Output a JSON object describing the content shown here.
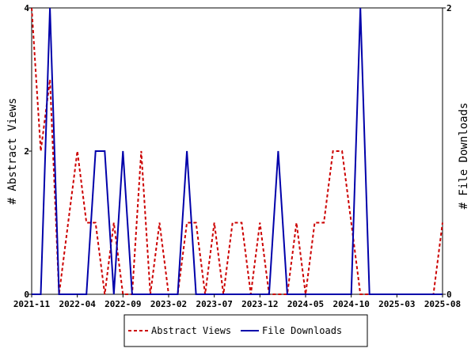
{
  "chart_data": {
    "type": "line",
    "x": [
      "2021-11",
      "2021-12",
      "2022-01",
      "2022-02",
      "2022-03",
      "2022-04",
      "2022-05",
      "2022-06",
      "2022-07",
      "2022-08",
      "2022-09",
      "2022-10",
      "2022-11",
      "2022-12",
      "2023-01",
      "2023-02",
      "2023-03",
      "2023-04",
      "2023-05",
      "2023-06",
      "2023-07",
      "2023-08",
      "2023-09",
      "2023-10",
      "2023-11",
      "2023-12",
      "2024-01",
      "2024-02",
      "2024-03",
      "2024-04",
      "2024-05",
      "2024-06",
      "2024-07",
      "2024-08",
      "2024-09",
      "2024-10",
      "2024-11",
      "2024-12",
      "2025-01",
      "2025-02",
      "2025-03",
      "2025-04",
      "2025-05",
      "2025-06",
      "2025-07",
      "2025-08"
    ],
    "x_ticks": [
      "2021-11",
      "2022-04",
      "2022-09",
      "2023-02",
      "2023-07",
      "2023-12",
      "2024-05",
      "2024-10",
      "2025-03",
      "2025-08"
    ],
    "series": [
      {
        "name": "Abstract Views",
        "axis": "left",
        "color": "#cc0000",
        "dash": true,
        "values": [
          4,
          2,
          3,
          0,
          1,
          2,
          1,
          1,
          0,
          1,
          0,
          0,
          2,
          0,
          1,
          0,
          0,
          1,
          1,
          0,
          1,
          0,
          1,
          1,
          0,
          1,
          0,
          0,
          0,
          1,
          0,
          1,
          1,
          2,
          2,
          1,
          0,
          0,
          0,
          0,
          0,
          0,
          0,
          0,
          0,
          1
        ]
      },
      {
        "name": "File Downloads",
        "axis": "right",
        "color": "#0000aa",
        "dash": false,
        "values": [
          0,
          0,
          2,
          0,
          0,
          0,
          0,
          1,
          1,
          0,
          1,
          0,
          0,
          0,
          0,
          0,
          0,
          1,
          0,
          0,
          0,
          0,
          0,
          0,
          0,
          0,
          0,
          1,
          0,
          0,
          0,
          0,
          0,
          0,
          0,
          0,
          2,
          0,
          0,
          0,
          0,
          0,
          0,
          0,
          0,
          0
        ]
      }
    ],
    "ylabel_left": "# Abstract Views",
    "ylabel_right": "# File Downloads",
    "ylim_left": [
      0,
      4
    ],
    "ylim_right": [
      0,
      2
    ],
    "yticks_left": [
      0,
      2,
      4
    ],
    "yticks_right": [
      0,
      2
    ],
    "grid": false,
    "legend_position": "bottom"
  }
}
